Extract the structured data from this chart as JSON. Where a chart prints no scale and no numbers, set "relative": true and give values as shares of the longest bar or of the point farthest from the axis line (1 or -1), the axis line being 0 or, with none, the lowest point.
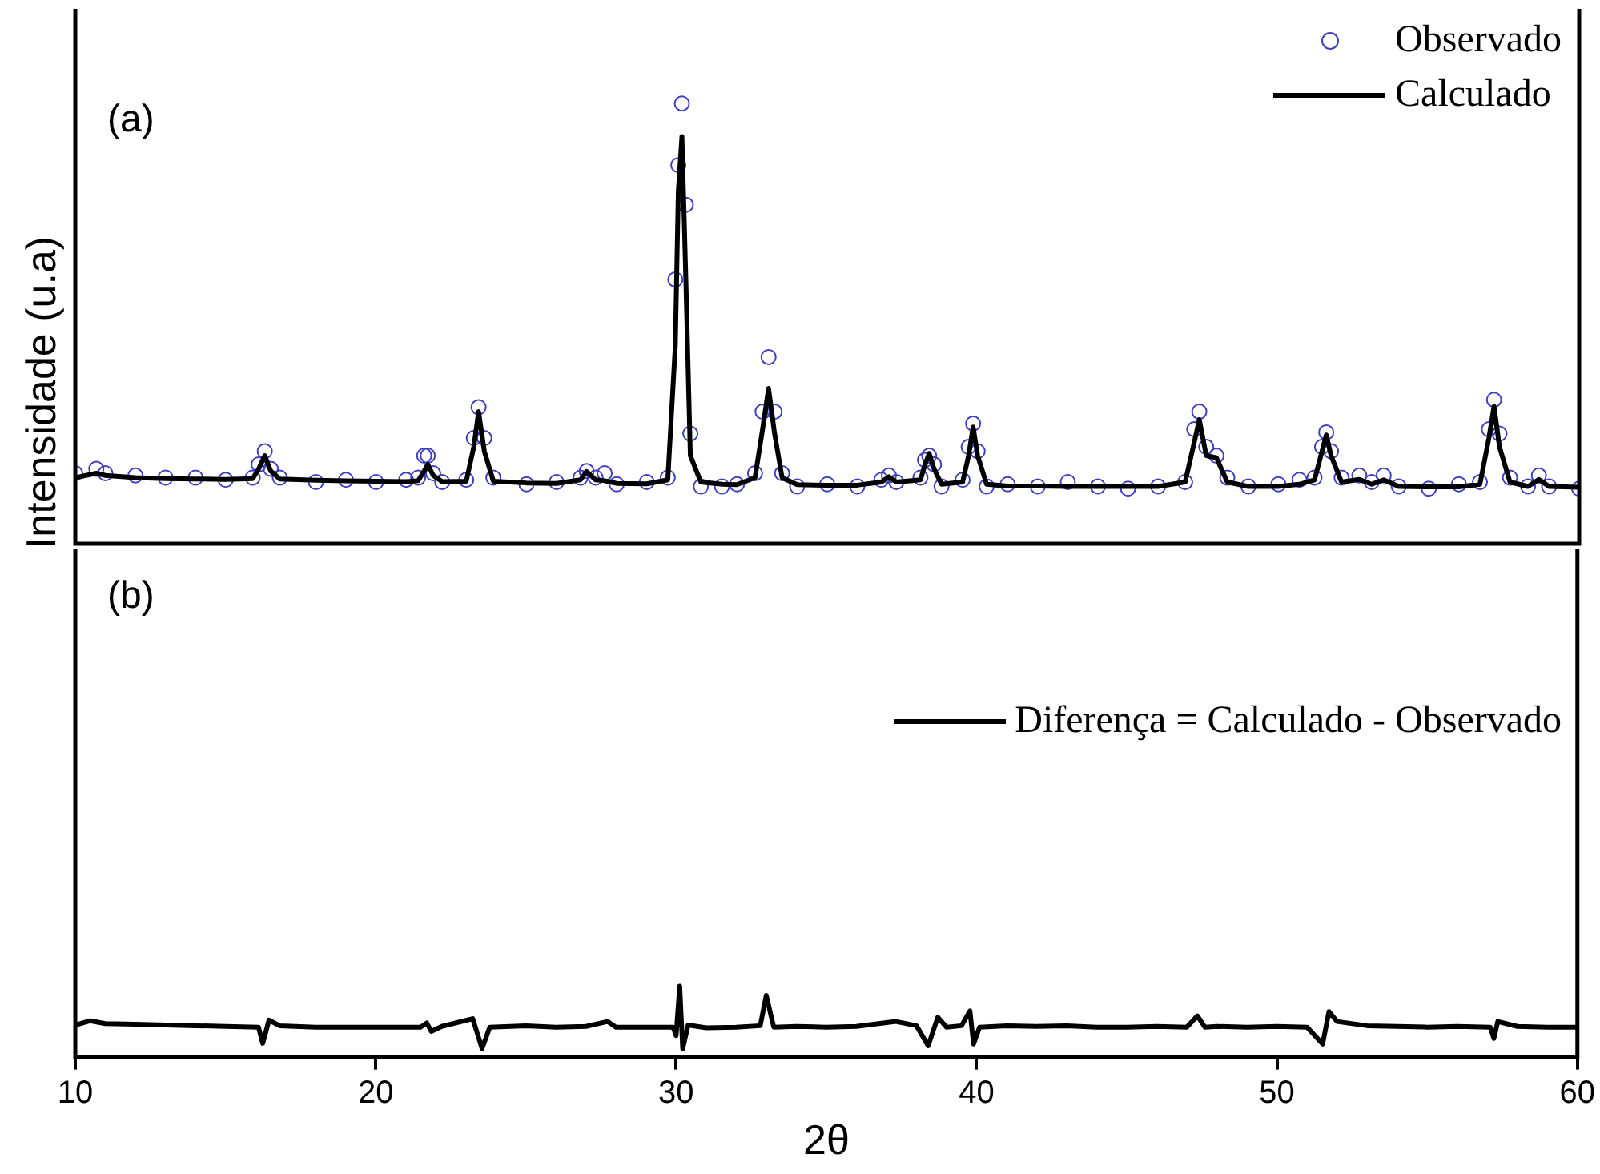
{
  "chart_data": [
    {
      "type": "line",
      "ylabel": "Intensidade (u.a)",
      "annotations": [
        "(a)"
      ],
      "relative": true,
      "tick_labels": false,
      "legend": "top right",
      "xlim": [
        10,
        60
      ],
      "xticks": [
        10,
        20,
        30,
        40,
        50,
        60
      ],
      "x": [
        10,
        10.7,
        11,
        12,
        13,
        14,
        15,
        15.9,
        16.1,
        16.3,
        16.5,
        16.8,
        18,
        19,
        20,
        21,
        21.4,
        21.6,
        21.72,
        21.9,
        22.2,
        23.0,
        23.25,
        23.41,
        23.6,
        23.9,
        25,
        26,
        26.8,
        27.0,
        27.3,
        27.6,
        28,
        29,
        29.7,
        29.95,
        30.05,
        30.17,
        30.3,
        30.45,
        30.8,
        31.5,
        32,
        32.6,
        32.85,
        33.05,
        33.25,
        33.5,
        34,
        35,
        36,
        36.8,
        37.05,
        37.3,
        38.1,
        38.25,
        38.39,
        38.55,
        38.8,
        39.5,
        39.7,
        39.85,
        40.0,
        40.3,
        41,
        42,
        43,
        44,
        45,
        46,
        46.9,
        47.2,
        47.37,
        47.6,
        47.94,
        48.3,
        49,
        50,
        50.7,
        51.2,
        51.45,
        51.59,
        51.75,
        52.1,
        52.69,
        53.1,
        53.5,
        54,
        55,
        56,
        56.7,
        57.0,
        57.17,
        57.35,
        57.7,
        58.3,
        58.66,
        59,
        60
      ],
      "series": [
        {
          "name": "Observado",
          "type": "scatter",
          "marker": "circle",
          "color": "#3f3fbf",
          "values": [
            0.16,
            0.17,
            0.16,
            0.155,
            0.15,
            0.15,
            0.145,
            0.15,
            0.18,
            0.21,
            0.17,
            0.15,
            0.14,
            0.145,
            0.14,
            0.145,
            0.15,
            0.2,
            0.2,
            0.16,
            0.14,
            0.145,
            0.24,
            0.31,
            0.24,
            0.15,
            0.135,
            0.14,
            0.15,
            0.165,
            0.15,
            0.16,
            0.135,
            0.14,
            0.15,
            0.6,
            0.86,
            1,
            0.77,
            0.25,
            0.13,
            0.13,
            0.135,
            0.16,
            0.3,
            0.424,
            0.3,
            0.16,
            0.13,
            0.135,
            0.13,
            0.145,
            0.155,
            0.14,
            0.15,
            0.19,
            0.2,
            0.18,
            0.13,
            0.145,
            0.22,
            0.273,
            0.21,
            0.13,
            0.135,
            0.13,
            0.14,
            0.13,
            0.125,
            0.13,
            0.14,
            0.26,
            0.3,
            0.22,
            0.2,
            0.15,
            0.13,
            0.135,
            0.145,
            0.15,
            0.22,
            0.253,
            0.21,
            0.15,
            0.155,
            0.14,
            0.155,
            0.13,
            0.125,
            0.135,
            0.14,
            0.26,
            0.327,
            0.25,
            0.15,
            0.13,
            0.155,
            0.13,
            0.125
          ]
        },
        {
          "name": "Calculado",
          "marker": "none",
          "color": "#000000",
          "values": [
            0.15,
            0.16,
            0.155,
            0.15,
            0.148,
            0.147,
            0.146,
            0.148,
            0.17,
            0.2,
            0.165,
            0.147,
            0.144,
            0.143,
            0.142,
            0.141,
            0.143,
            0.165,
            0.18,
            0.155,
            0.141,
            0.142,
            0.22,
            0.3,
            0.21,
            0.142,
            0.138,
            0.137,
            0.145,
            0.164,
            0.145,
            0.143,
            0.137,
            0.136,
            0.145,
            0.45,
            0.8,
            0.925,
            0.6,
            0.2,
            0.14,
            0.135,
            0.134,
            0.15,
            0.26,
            0.353,
            0.25,
            0.15,
            0.134,
            0.133,
            0.133,
            0.14,
            0.152,
            0.14,
            0.145,
            0.18,
            0.205,
            0.17,
            0.135,
            0.14,
            0.2,
            0.265,
            0.2,
            0.135,
            0.131,
            0.131,
            0.13,
            0.13,
            0.13,
            0.13,
            0.14,
            0.23,
            0.282,
            0.2,
            0.195,
            0.14,
            0.13,
            0.13,
            0.135,
            0.145,
            0.21,
            0.247,
            0.2,
            0.14,
            0.146,
            0.135,
            0.145,
            0.13,
            0.129,
            0.129,
            0.135,
            0.24,
            0.312,
            0.22,
            0.14,
            0.13,
            0.146,
            0.13,
            0.128
          ]
        }
      ]
    },
    {
      "type": "line",
      "xlabel": "2θ",
      "annotations": [
        "(b)"
      ],
      "relative": true,
      "tick_labels": "x",
      "legend": "top right",
      "xlim": [
        10,
        60
      ],
      "xticks": [
        10,
        20,
        30,
        40,
        50,
        60
      ],
      "x": [
        10,
        10.5,
        11,
        12,
        13,
        14,
        15,
        16.1,
        16.24,
        16.45,
        16.8,
        18,
        20,
        21.5,
        21.7,
        21.85,
        22.2,
        23.23,
        23.54,
        23.8,
        25,
        26,
        27,
        27.72,
        28,
        29,
        29.9,
        30.0,
        30.12,
        30.22,
        30.4,
        31,
        32,
        32.8,
        33.0,
        33.25,
        34,
        35,
        36,
        37.32,
        38,
        38.39,
        38.71,
        39,
        39.5,
        39.78,
        39.9,
        40.1,
        41,
        42,
        43,
        44,
        45,
        46,
        47,
        47.35,
        47.6,
        48,
        49,
        50,
        51,
        51.52,
        51.73,
        52,
        53,
        54,
        55,
        56,
        57.1,
        57.22,
        57.35,
        58,
        59,
        60
      ],
      "series": [
        {
          "name": "Diferença = Calculado - Observado",
          "marker": "none",
          "color": "#000000",
          "values": [
            0.45,
            0.51,
            0.47,
            0.46,
            0.45,
            0.44,
            0.43,
            0.42,
            0.19,
            0.52,
            0.44,
            0.42,
            0.42,
            0.42,
            0.48,
            0.36,
            0.43,
            0.54,
            0.115,
            0.42,
            0.44,
            0.42,
            0.43,
            0.5,
            0.42,
            0.42,
            0.42,
            0.3,
            1,
            0.115,
            0.45,
            0.41,
            0.42,
            0.44,
            0.87,
            0.42,
            0.43,
            0.42,
            0.43,
            0.5,
            0.44,
            0.155,
            0.56,
            0.42,
            0.44,
            0.65,
            0.18,
            0.42,
            0.44,
            0.43,
            0.44,
            0.42,
            0.42,
            0.43,
            0.42,
            0.58,
            0.42,
            0.43,
            0.42,
            0.43,
            0.42,
            0.18,
            0.64,
            0.5,
            0.44,
            0.43,
            0.42,
            0.43,
            0.42,
            0.26,
            0.5,
            0.43,
            0.42,
            0.42
          ]
        }
      ]
    }
  ]
}
